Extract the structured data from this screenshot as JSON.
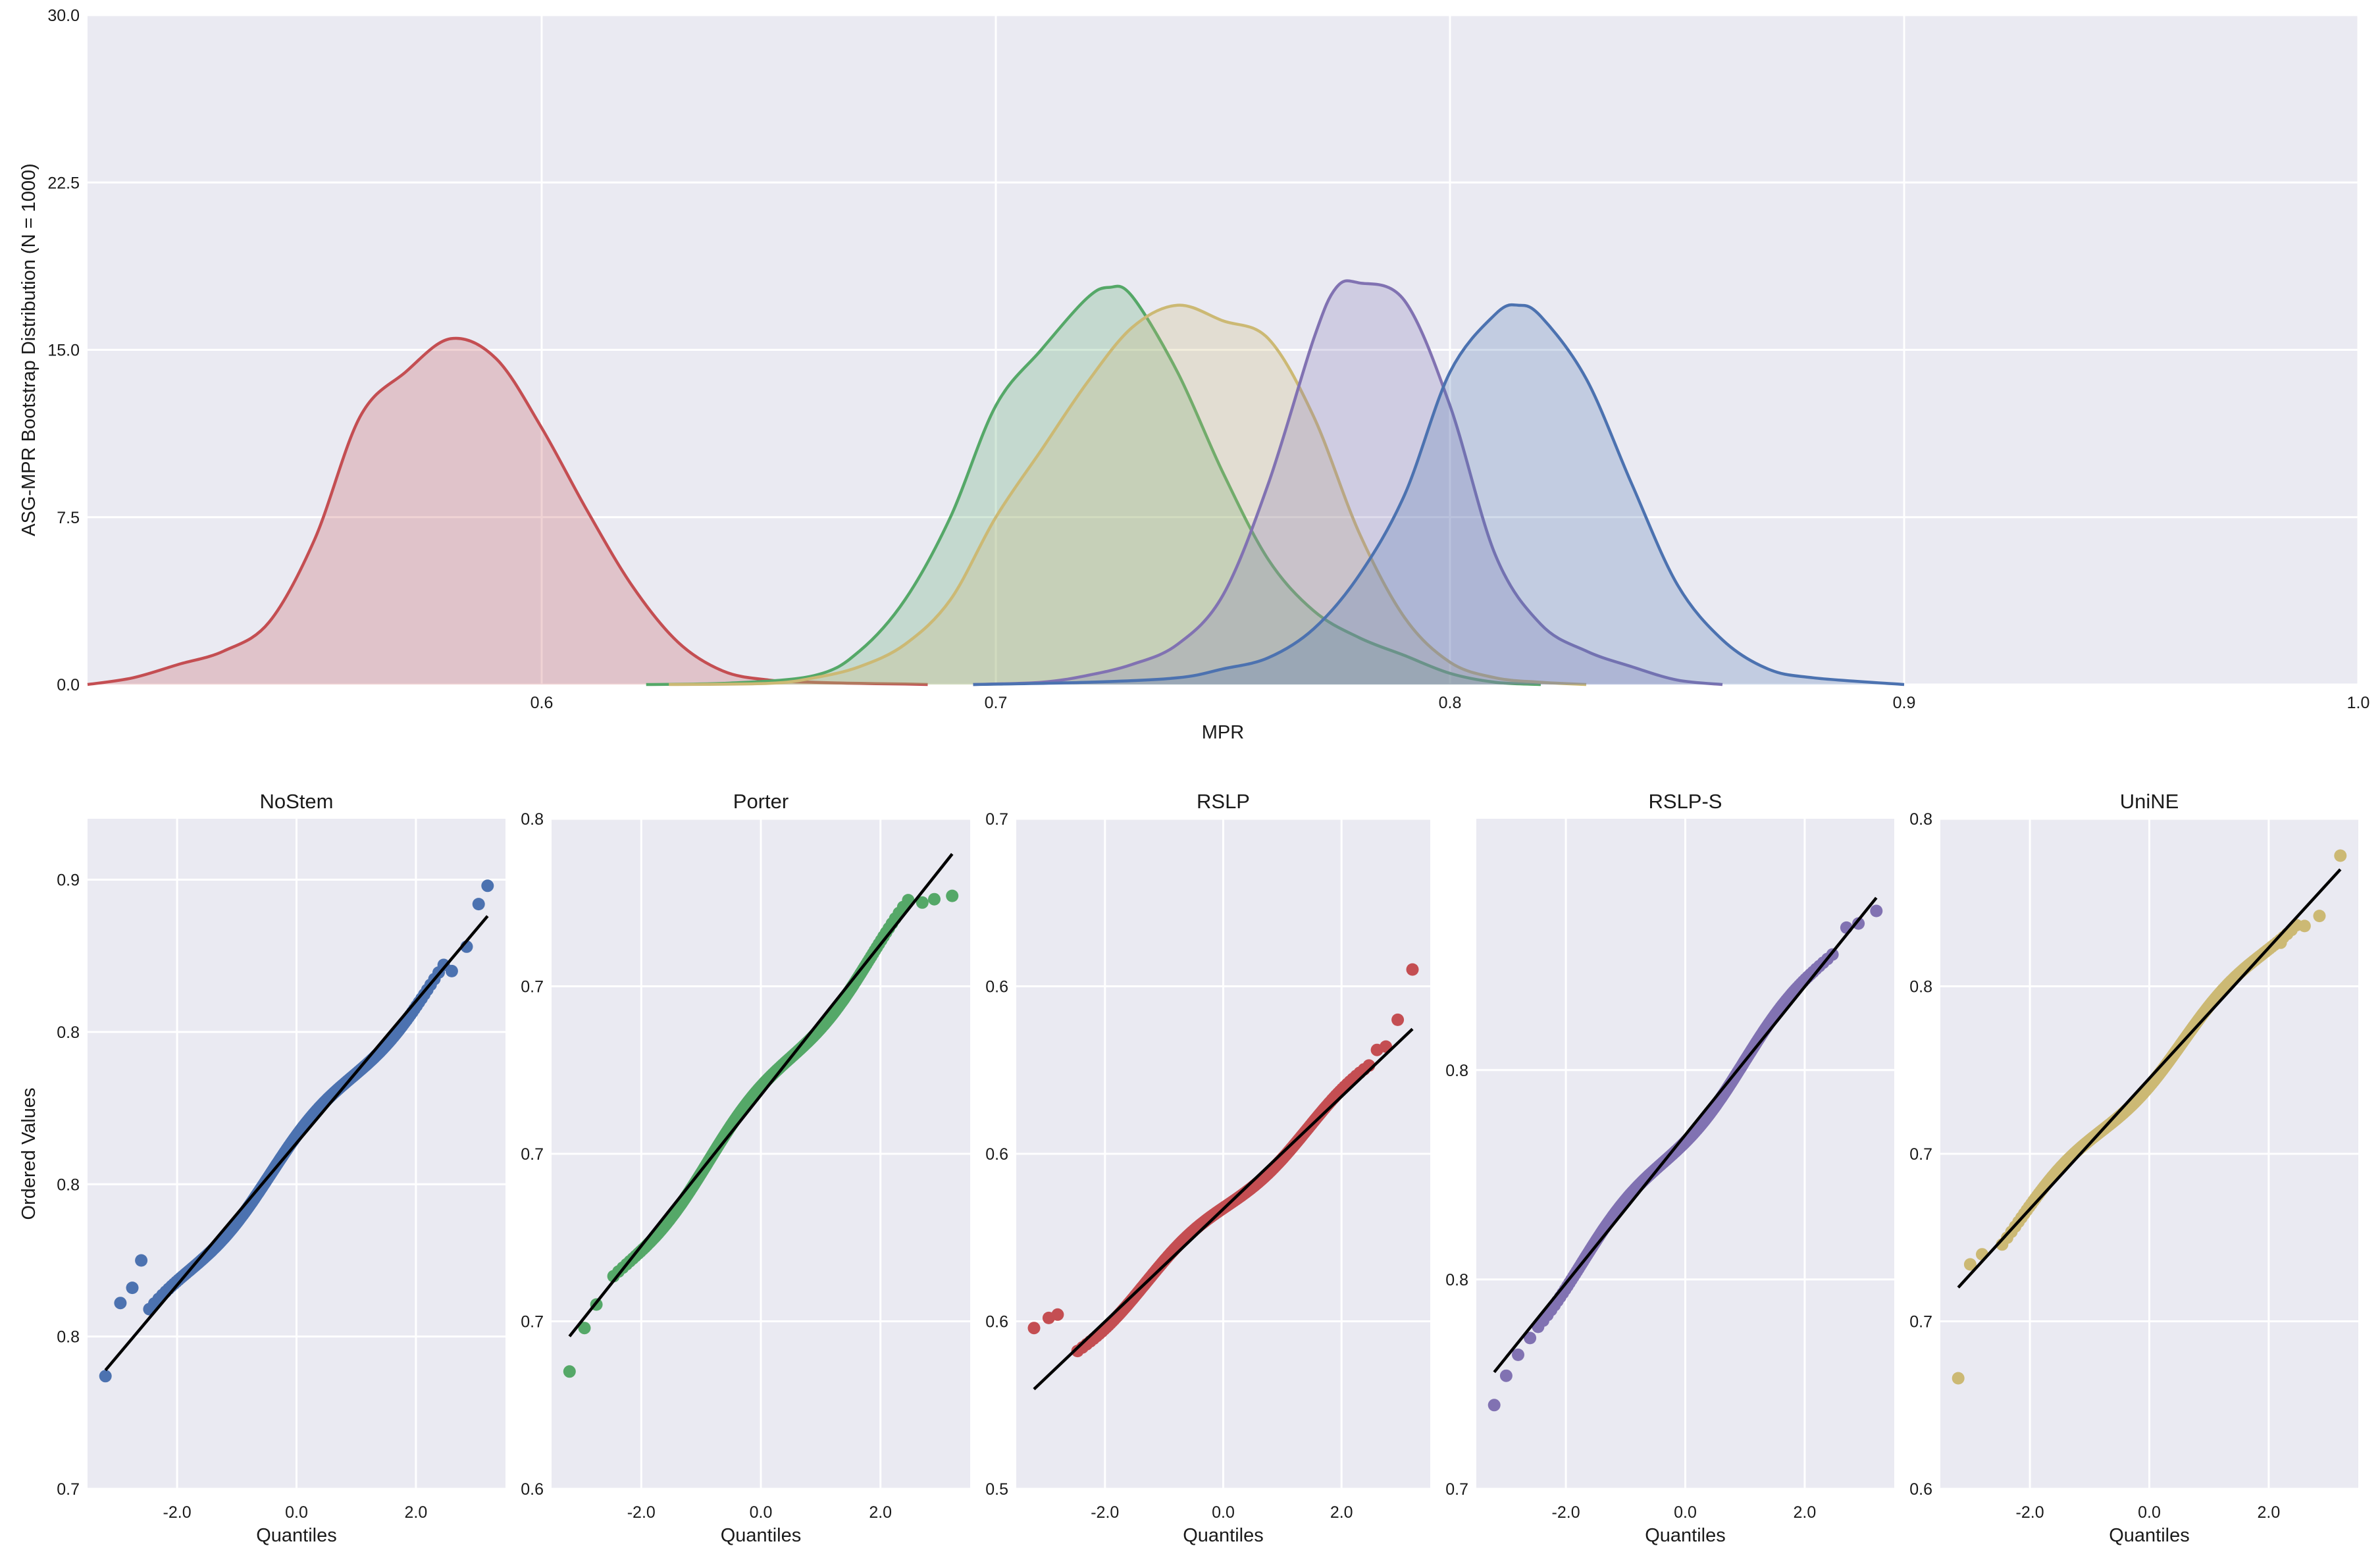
{
  "colors": {
    "background": "#eaeaf2",
    "grid": "#ffffff",
    "blue": "#4c72b0",
    "green": "#55a868",
    "red": "#c44e52",
    "purple": "#8172b2",
    "yellow": "#ccb974",
    "ref_line": "#000000"
  },
  "chart_data": [
    {
      "type": "area",
      "title": "",
      "xlabel": "MPR",
      "ylabel": "ASG-MPR Bootstrap Distribution (N = 1000)",
      "xlim": [
        0.5,
        1.0
      ],
      "ylim": [
        0,
        30
      ],
      "x_ticks": [
        0.6,
        0.7,
        0.8,
        0.9,
        1.0
      ],
      "x_tick_labels": [
        "0.6",
        "0.7",
        "0.8",
        "0.9",
        "1.0"
      ],
      "y_ticks": [
        0,
        7.5,
        15,
        22.5,
        30
      ],
      "y_tick_labels": [
        "0.0",
        "7.5",
        "15.0",
        "22.5",
        "30.0"
      ],
      "grid": true,
      "legend": "none",
      "series": [
        {
          "color": "red",
          "x": [
            0.5,
            0.51,
            0.52,
            0.53,
            0.54,
            0.55,
            0.56,
            0.57,
            0.58,
            0.59,
            0.6,
            0.61,
            0.62,
            0.63,
            0.64,
            0.65,
            0.66,
            0.67,
            0.68,
            0.685
          ],
          "y": [
            0,
            0.3,
            0.9,
            1.5,
            2.8,
            6.5,
            12,
            14,
            15.5,
            14.6,
            11.5,
            7.8,
            4.4,
            1.9,
            0.6,
            0.2,
            0.1,
            0.05,
            0.02,
            0
          ]
        },
        {
          "color": "green",
          "x": [
            0.623,
            0.64,
            0.66,
            0.67,
            0.68,
            0.69,
            0.7,
            0.71,
            0.72,
            0.725,
            0.73,
            0.74,
            0.75,
            0.76,
            0.77,
            0.78,
            0.79,
            0.8,
            0.81,
            0.82
          ],
          "y": [
            0,
            0.05,
            0.4,
            1.5,
            3.8,
            7.5,
            12.5,
            15,
            17.3,
            17.8,
            17.4,
            14,
            9.5,
            5.6,
            3.3,
            2.1,
            1.3,
            0.5,
            0.1,
            0
          ]
        },
        {
          "color": "yellow",
          "x": [
            0.628,
            0.65,
            0.66,
            0.67,
            0.68,
            0.69,
            0.7,
            0.71,
            0.72,
            0.73,
            0.74,
            0.75,
            0.76,
            0.77,
            0.78,
            0.79,
            0.8,
            0.81,
            0.82,
            0.83
          ],
          "y": [
            0,
            0.05,
            0.3,
            0.8,
            1.8,
            3.8,
            7.5,
            10.5,
            13.5,
            16,
            17,
            16.3,
            15.5,
            12,
            6.8,
            3,
            1,
            0.3,
            0.1,
            0
          ]
        },
        {
          "color": "purple",
          "x": [
            0.695,
            0.71,
            0.72,
            0.73,
            0.74,
            0.75,
            0.76,
            0.77,
            0.775,
            0.78,
            0.79,
            0.8,
            0.81,
            0.82,
            0.83,
            0.84,
            0.85,
            0.86
          ],
          "y": [
            0,
            0.1,
            0.4,
            0.9,
            1.8,
            4,
            9,
            15.5,
            17.8,
            18,
            17.2,
            12.5,
            5.8,
            2.7,
            1.5,
            0.8,
            0.2,
            0
          ]
        },
        {
          "color": "blue",
          "x": [
            0.695,
            0.72,
            0.74,
            0.75,
            0.76,
            0.77,
            0.78,
            0.79,
            0.8,
            0.81,
            0.815,
            0.82,
            0.83,
            0.84,
            0.85,
            0.86,
            0.87,
            0.88,
            0.9
          ],
          "y": [
            0,
            0.1,
            0.3,
            0.7,
            1.2,
            2.5,
            4.9,
            8.5,
            14,
            16.6,
            17,
            16.5,
            13.7,
            9,
            4.5,
            2,
            0.7,
            0.3,
            0
          ]
        }
      ]
    },
    {
      "type": "scatter",
      "title": "NoStem",
      "xlabel": "Quantiles",
      "ylabel": "Ordered Values",
      "color": "blue",
      "xlim": [
        -3.5,
        3.5
      ],
      "ylim": [
        0.7,
        0.92
      ],
      "x_ticks": [
        -2,
        0,
        2
      ],
      "x_tick_labels": [
        "-2.0",
        "0.0",
        "2.0"
      ],
      "y_ticks": [
        0.7,
        0.75,
        0.8,
        0.85,
        0.9
      ],
      "y_tick_labels": [
        "0.7",
        "0.8",
        "0.8",
        "0.8",
        "0.9"
      ],
      "fit_line": {
        "intercept": 0.8135,
        "slope": 0.0233
      },
      "sample": {
        "mean": 0.8135,
        "sd": 0.0233,
        "n": 400
      },
      "outliers": [
        [
          -3.2,
          0.737
        ],
        [
          -2.95,
          0.761
        ],
        [
          -2.75,
          0.766
        ],
        [
          -2.6,
          0.775
        ],
        [
          2.6,
          0.87
        ],
        [
          2.85,
          0.878
        ],
        [
          3.05,
          0.892
        ],
        [
          3.2,
          0.898
        ]
      ]
    },
    {
      "type": "scatter",
      "title": "Porter",
      "xlabel": "Quantiles",
      "ylabel": "",
      "color": "green",
      "xlim": [
        -3.5,
        3.5
      ],
      "ylim": [
        0.6,
        0.8
      ],
      "x_ticks": [
        -2,
        0,
        2
      ],
      "x_tick_labels": [
        "-2.0",
        "0.0",
        "2.0"
      ],
      "y_ticks": [
        0.6,
        0.65,
        0.7,
        0.75,
        0.8
      ],
      "y_tick_labels": [
        "0.6",
        "0.7",
        "0.7",
        "0.7",
        "0.8"
      ],
      "fit_line": {
        "intercept": 0.7175,
        "slope": 0.0225
      },
      "sample": {
        "mean": 0.7175,
        "sd": 0.0225,
        "n": 400
      },
      "outliers": [
        [
          -3.2,
          0.635
        ],
        [
          -2.95,
          0.648
        ],
        [
          -2.75,
          0.655
        ],
        [
          2.7,
          0.775
        ],
        [
          2.9,
          0.776
        ],
        [
          3.2,
          0.777
        ]
      ]
    },
    {
      "type": "scatter",
      "title": "RSLP",
      "xlabel": "Quantiles",
      "ylabel": "",
      "color": "red",
      "xlim": [
        -3.5,
        3.5
      ],
      "ylim": [
        0.5,
        0.7
      ],
      "x_ticks": [
        -2,
        0,
        2
      ],
      "x_tick_labels": [
        "-2.0",
        "0.0",
        "2.0"
      ],
      "y_ticks": [
        0.5,
        0.55,
        0.6,
        0.65,
        0.7
      ],
      "y_tick_labels": [
        "0.5",
        "0.6",
        "0.6",
        "0.6",
        "0.7"
      ],
      "fit_line": {
        "intercept": 0.5835,
        "slope": 0.0168
      },
      "sample": {
        "mean": 0.5835,
        "sd": 0.0168,
        "n": 400
      },
      "outliers": [
        [
          -3.2,
          0.548
        ],
        [
          -2.95,
          0.551
        ],
        [
          -2.8,
          0.552
        ],
        [
          2.6,
          0.631
        ],
        [
          2.75,
          0.632
        ],
        [
          2.95,
          0.64
        ],
        [
          3.2,
          0.655
        ]
      ]
    },
    {
      "type": "scatter",
      "title": "RSLP-S",
      "xlabel": "Quantiles",
      "ylabel": "",
      "color": "purple",
      "xlim": [
        -3.5,
        3.5
      ],
      "ylim": [
        0.7,
        0.86
      ],
      "x_ticks": [
        -2,
        0,
        2
      ],
      "x_tick_labels": [
        "-2.0",
        "0.0",
        "2.0"
      ],
      "y_ticks": [
        0.7,
        0.75,
        0.8
      ],
      "y_tick_labels": [
        "0.7",
        "0.8",
        "0.8"
      ],
      "fit_line": {
        "intercept": 0.7845,
        "slope": 0.0177
      },
      "sample": {
        "mean": 0.7845,
        "sd": 0.0177,
        "n": 400
      },
      "outliers": [
        [
          -3.2,
          0.72
        ],
        [
          -3.0,
          0.727
        ],
        [
          -2.8,
          0.732
        ],
        [
          -2.6,
          0.736
        ],
        [
          2.7,
          0.834
        ],
        [
          2.9,
          0.835
        ],
        [
          3.2,
          0.838
        ]
      ]
    },
    {
      "type": "scatter",
      "title": "UniNE",
      "xlabel": "Quantiles",
      "ylabel": "",
      "color": "yellow",
      "xlim": [
        -3.5,
        3.5
      ],
      "ylim": [
        0.6,
        0.8
      ],
      "x_ticks": [
        -2,
        0,
        2
      ],
      "x_tick_labels": [
        "-2.0",
        "0.0",
        "2.0"
      ],
      "y_ticks": [
        0.6,
        0.65,
        0.7,
        0.75,
        0.8
      ],
      "y_tick_labels": [
        "0.6",
        "0.7",
        "0.7",
        "0.8",
        "0.8"
      ],
      "fit_line": {
        "intercept": 0.7225,
        "slope": 0.0195
      },
      "sample": {
        "mean": 0.7225,
        "sd": 0.0195,
        "n": 400
      },
      "outliers": [
        [
          -3.2,
          0.633
        ],
        [
          -3.0,
          0.667
        ],
        [
          -2.8,
          0.67
        ],
        [
          2.2,
          0.763
        ],
        [
          2.6,
          0.768
        ],
        [
          2.85,
          0.771
        ],
        [
          3.2,
          0.789
        ]
      ]
    }
  ]
}
